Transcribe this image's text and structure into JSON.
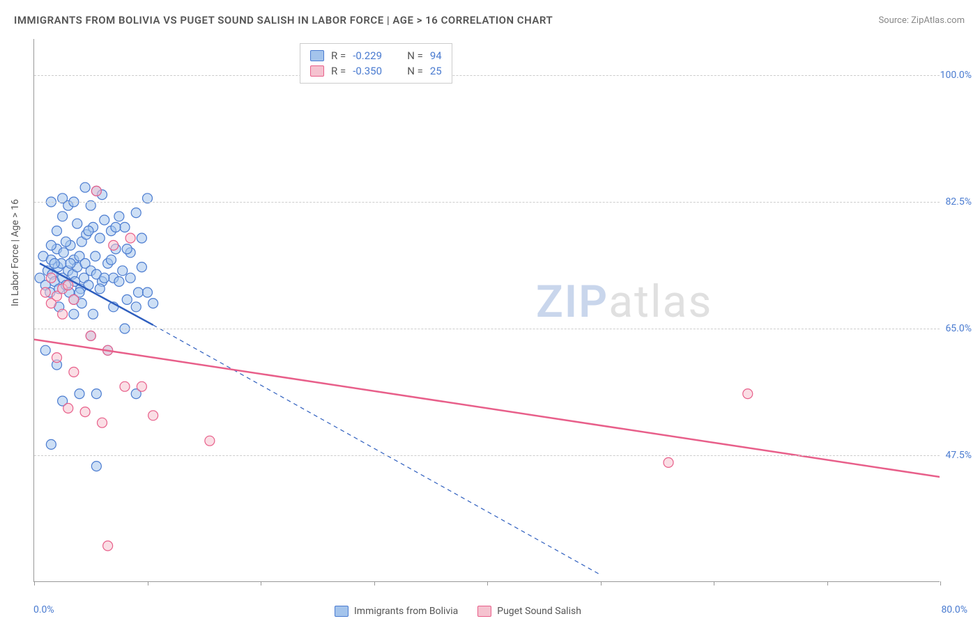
{
  "title": "IMMIGRANTS FROM BOLIVIA VS PUGET SOUND SALISH IN LABOR FORCE | AGE > 16 CORRELATION CHART",
  "source_label": "Source:",
  "source_name": "ZipAtlas.com",
  "ylabel": "In Labor Force | Age > 16",
  "watermark_prefix": "ZIP",
  "watermark_suffix": "atlas",
  "chart": {
    "type": "scatter",
    "background_color": "#ffffff",
    "grid_color": "#cccccc",
    "axis_color": "#999999",
    "tick_label_color": "#4a7bd0",
    "xlim": [
      0,
      80
    ],
    "ylim": [
      30,
      105
    ],
    "x_tick_positions": [
      0,
      10,
      20,
      30,
      40,
      50,
      60,
      70,
      80
    ],
    "y_gridlines": [
      47.5,
      65.0,
      82.5,
      100.0
    ],
    "x_tick_labels": {
      "min": "0.0%",
      "max": "80.0%"
    },
    "y_tick_labels": [
      "47.5%",
      "65.0%",
      "82.5%",
      "100.0%"
    ],
    "marker_radius": 7,
    "marker_opacity": 0.55,
    "marker_stroke_width": 1.2,
    "trend_line_width": 2.5,
    "series": [
      {
        "name": "Immigrants from Bolivia",
        "fill": "#a4c4ec",
        "stroke": "#4a7bd0",
        "line_color": "#2f5fbf",
        "r_value": "-0.229",
        "n_value": "94",
        "trend_solid": {
          "x1": 0.5,
          "y1": 74.0,
          "x2": 10.5,
          "y2": 65.5
        },
        "trend_dashed": {
          "x1": 10.5,
          "y1": 65.5,
          "x2": 50,
          "y2": 31
        },
        "points": [
          [
            0.5,
            72
          ],
          [
            0.8,
            75
          ],
          [
            1.0,
            71
          ],
          [
            1.2,
            73
          ],
          [
            1.4,
            70
          ],
          [
            1.5,
            74.5
          ],
          [
            1.6,
            72.5
          ],
          [
            1.8,
            71.5
          ],
          [
            2.0,
            76
          ],
          [
            2.1,
            73.5
          ],
          [
            2.2,
            70.5
          ],
          [
            2.4,
            74
          ],
          [
            2.5,
            72
          ],
          [
            2.6,
            75.5
          ],
          [
            2.8,
            71
          ],
          [
            3.0,
            73
          ],
          [
            3.1,
            70
          ],
          [
            3.2,
            76.5
          ],
          [
            3.4,
            72.5
          ],
          [
            3.5,
            74.5
          ],
          [
            3.6,
            71.5
          ],
          [
            3.8,
            73.5
          ],
          [
            4.0,
            75
          ],
          [
            4.1,
            70.5
          ],
          [
            4.2,
            77
          ],
          [
            4.4,
            72
          ],
          [
            4.5,
            74
          ],
          [
            4.6,
            78
          ],
          [
            4.8,
            71
          ],
          [
            5.0,
            73
          ],
          [
            5.2,
            79
          ],
          [
            5.4,
            75
          ],
          [
            5.5,
            72.5
          ],
          [
            5.8,
            77.5
          ],
          [
            6.0,
            71.5
          ],
          [
            6.2,
            80
          ],
          [
            6.5,
            74
          ],
          [
            6.8,
            78.5
          ],
          [
            7.0,
            72
          ],
          [
            7.2,
            76
          ],
          [
            7.5,
            80.5
          ],
          [
            7.8,
            73
          ],
          [
            8.0,
            79
          ],
          [
            8.2,
            69
          ],
          [
            8.5,
            75.5
          ],
          [
            9.0,
            81
          ],
          [
            9.2,
            70
          ],
          [
            9.5,
            77.5
          ],
          [
            10.0,
            83
          ],
          [
            10.5,
            68.5
          ],
          [
            4.5,
            84.5
          ],
          [
            5.5,
            84
          ],
          [
            3.0,
            82
          ],
          [
            6.0,
            83.5
          ],
          [
            2.5,
            80.5
          ],
          [
            7.0,
            68
          ],
          [
            8.0,
            65
          ],
          [
            3.5,
            67
          ],
          [
            5.0,
            64
          ],
          [
            6.5,
            62
          ],
          [
            1.0,
            62
          ],
          [
            2.0,
            60
          ],
          [
            4.0,
            56
          ],
          [
            5.5,
            56
          ],
          [
            9.0,
            56
          ],
          [
            2.5,
            55
          ],
          [
            1.5,
            49
          ],
          [
            5.5,
            46
          ],
          [
            2.0,
            78.5
          ],
          [
            3.8,
            79.5
          ],
          [
            4.2,
            68.5
          ],
          [
            5.8,
            70.5
          ],
          [
            6.8,
            74.5
          ],
          [
            7.5,
            71.5
          ],
          [
            8.5,
            72
          ],
          [
            9.5,
            73.5
          ],
          [
            10.0,
            70
          ],
          [
            1.5,
            76.5
          ],
          [
            2.8,
            77
          ],
          [
            3.5,
            69
          ],
          [
            4.8,
            78.5
          ],
          [
            5.2,
            67
          ],
          [
            6.2,
            72
          ],
          [
            7.2,
            79
          ],
          [
            8.2,
            76
          ],
          [
            9.0,
            68
          ],
          [
            1.8,
            74
          ],
          [
            2.2,
            68
          ],
          [
            3.2,
            74
          ],
          [
            4.0,
            70
          ],
          [
            1.5,
            82.5
          ],
          [
            2.5,
            83
          ],
          [
            3.5,
            82.5
          ],
          [
            5.0,
            82
          ]
        ]
      },
      {
        "name": "Puget Sound Salish",
        "fill": "#f5c2cf",
        "stroke": "#e85f8a",
        "line_color": "#e85f8a",
        "r_value": "-0.350",
        "n_value": "25",
        "trend_solid": {
          "x1": 0,
          "y1": 63.5,
          "x2": 80,
          "y2": 44.5
        },
        "trend_dashed": null,
        "points": [
          [
            1.0,
            70
          ],
          [
            1.5,
            68.5
          ],
          [
            2.0,
            69.5
          ],
          [
            2.5,
            70.5
          ],
          [
            3.0,
            71
          ],
          [
            3.5,
            69
          ],
          [
            5.5,
            84
          ],
          [
            7.0,
            76.5
          ],
          [
            8.5,
            77.5
          ],
          [
            2.0,
            61
          ],
          [
            3.5,
            59
          ],
          [
            5.0,
            64
          ],
          [
            6.5,
            62
          ],
          [
            8.0,
            57
          ],
          [
            9.5,
            57
          ],
          [
            10.5,
            53
          ],
          [
            3.0,
            54
          ],
          [
            4.5,
            53.5
          ],
          [
            6.0,
            52
          ],
          [
            15.5,
            49.5
          ],
          [
            6.5,
            35
          ],
          [
            56,
            46.5
          ],
          [
            63,
            56
          ],
          [
            1.5,
            72
          ],
          [
            2.5,
            67
          ]
        ]
      }
    ]
  },
  "legend_bottom": [
    {
      "label": "Immigrants from Bolivia",
      "fill": "#a4c4ec",
      "stroke": "#4a7bd0"
    },
    {
      "label": "Puget Sound Salish",
      "fill": "#f5c2cf",
      "stroke": "#e85f8a"
    }
  ]
}
